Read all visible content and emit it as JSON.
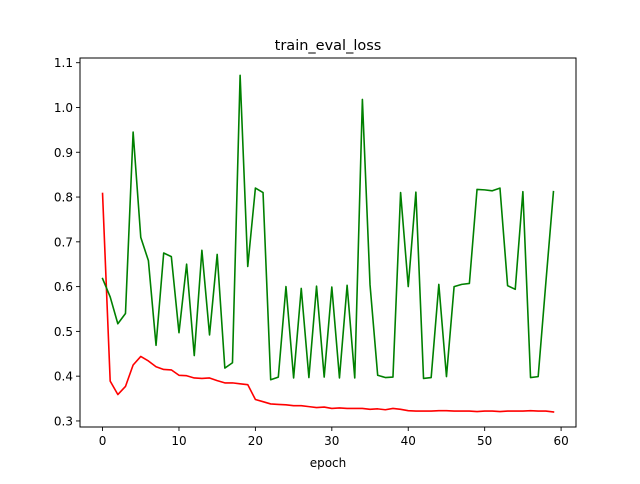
{
  "chart_data": {
    "type": "line",
    "title": "train_eval_loss",
    "xlabel": "epoch",
    "ylabel": "",
    "xlim": [
      -2.95,
      61.95
    ],
    "ylim": [
      0.2865,
      1.1105
    ],
    "xticks": [
      0,
      10,
      20,
      30,
      40,
      50,
      60
    ],
    "yticks": [
      0.3,
      0.4,
      0.5,
      0.6,
      0.7,
      0.8,
      0.9,
      1.0,
      1.1
    ],
    "ytick_labels": [
      "0.3",
      "0.4",
      "0.5",
      "0.6",
      "0.7",
      "0.8",
      "0.9",
      "1.0",
      "1.1"
    ],
    "grid": false,
    "legend": "none",
    "x": [
      0,
      1,
      2,
      3,
      4,
      5,
      6,
      7,
      8,
      9,
      10,
      11,
      12,
      13,
      14,
      15,
      16,
      17,
      18,
      19,
      20,
      21,
      22,
      23,
      24,
      25,
      26,
      27,
      28,
      29,
      30,
      31,
      32,
      33,
      34,
      35,
      36,
      37,
      38,
      39,
      40,
      41,
      42,
      43,
      44,
      45,
      46,
      47,
      48,
      49,
      50,
      51,
      52,
      53,
      54,
      55,
      56,
      57,
      58,
      59
    ],
    "series": [
      {
        "color": "#ff0000",
        "values": [
          0.808,
          0.389,
          0.359,
          0.377,
          0.425,
          0.444,
          0.434,
          0.421,
          0.415,
          0.414,
          0.402,
          0.401,
          0.396,
          0.395,
          0.396,
          0.39,
          0.385,
          0.385,
          0.383,
          0.381,
          0.348,
          0.343,
          0.338,
          0.337,
          0.336,
          0.334,
          0.334,
          0.332,
          0.33,
          0.331,
          0.328,
          0.329,
          0.328,
          0.328,
          0.328,
          0.326,
          0.327,
          0.325,
          0.328,
          0.326,
          0.323,
          0.322,
          0.322,
          0.322,
          0.323,
          0.323,
          0.322,
          0.322,
          0.322,
          0.321,
          0.322,
          0.322,
          0.321,
          0.322,
          0.322,
          0.322,
          0.323,
          0.322,
          0.322,
          0.32
        ]
      },
      {
        "color": "#008000",
        "values": [
          0.618,
          0.577,
          0.517,
          0.54,
          0.945,
          0.71,
          0.658,
          0.469,
          0.675,
          0.667,
          0.497,
          0.65,
          0.446,
          0.681,
          0.492,
          0.672,
          0.418,
          0.43,
          1.072,
          0.645,
          0.82,
          0.81,
          0.392,
          0.398,
          0.6,
          0.396,
          0.596,
          0.397,
          0.601,
          0.398,
          0.599,
          0.396,
          0.603,
          0.396,
          1.018,
          0.604,
          0.402,
          0.397,
          0.398,
          0.81,
          0.6,
          0.811,
          0.395,
          0.397,
          0.605,
          0.399,
          0.6,
          0.605,
          0.607,
          0.817,
          0.816,
          0.814,
          0.82,
          0.602,
          0.594,
          0.812,
          0.397,
          0.399,
          0.608,
          0.812
        ]
      }
    ]
  }
}
